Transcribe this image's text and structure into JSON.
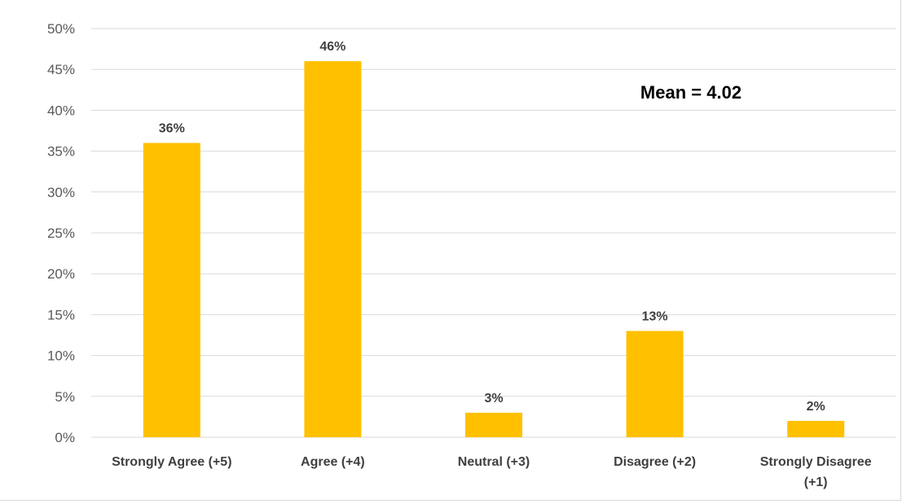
{
  "chart_data": {
    "type": "bar",
    "title": "",
    "xlabel": "",
    "ylabel": "",
    "categories": [
      [
        "Strongly Agree (+5)"
      ],
      [
        "Agree (+4)"
      ],
      [
        "Neutral (+3)"
      ],
      [
        "Disagree (+2)"
      ],
      [
        "Strongly Disagree",
        "(+1)"
      ]
    ],
    "values": [
      36,
      46,
      3,
      13,
      2
    ],
    "data_labels": [
      "36%",
      "46%",
      "3%",
      "13%",
      "2%"
    ],
    "ylim": [
      0,
      50
    ],
    "yticks": [
      0,
      5,
      10,
      15,
      20,
      25,
      30,
      35,
      40,
      45,
      50
    ],
    "ytick_labels": [
      "0%",
      "5%",
      "10%",
      "15%",
      "20%",
      "25%",
      "30%",
      "35%",
      "40%",
      "45%",
      "50%"
    ],
    "grid": true,
    "legend": "none",
    "bar_color": "#ffc000",
    "annotation": "Mean = 4.02"
  }
}
